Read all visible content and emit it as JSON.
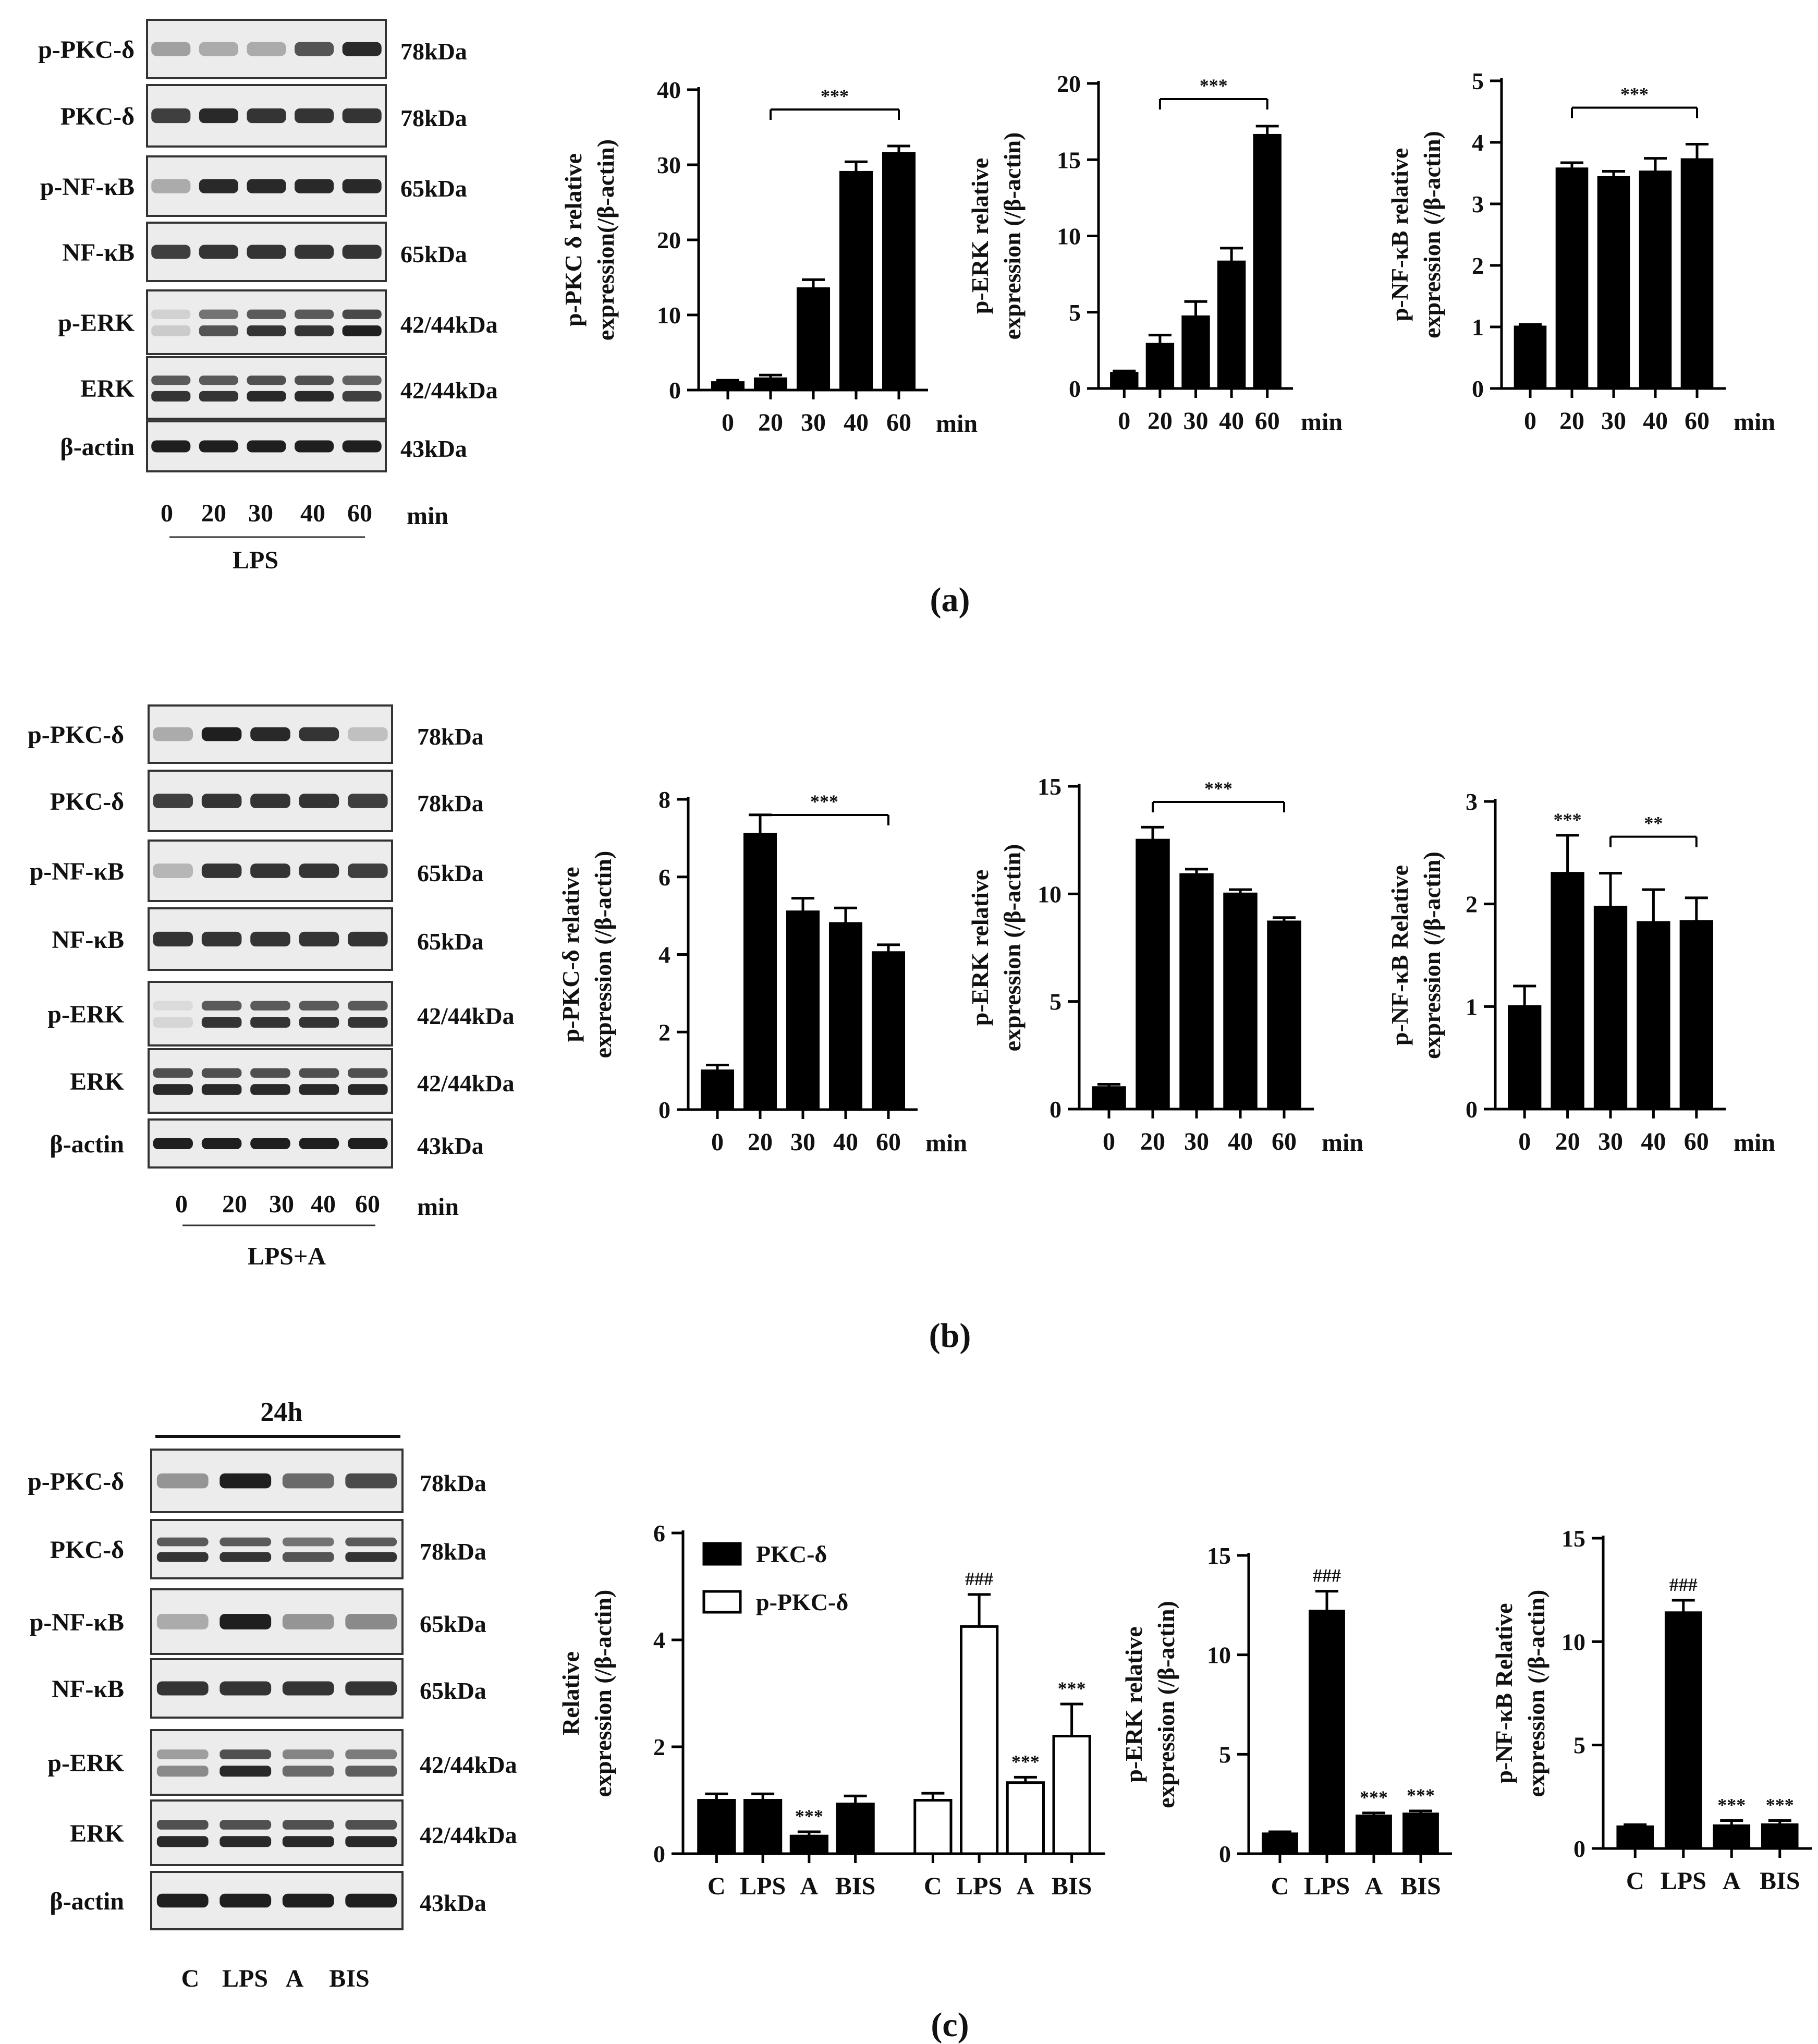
{
  "figure": {
    "panels": [
      {
        "label": "(a)",
        "blot": {
          "rows": [
            {
              "label": "p-PKC-δ",
              "kda": "78kDa",
              "bands": [
                0.35,
                0.3,
                0.3,
                0.7,
                0.9
              ]
            },
            {
              "label": "PKC-δ",
              "kda": "78kDa",
              "bands": [
                0.8,
                0.9,
                0.85,
                0.85,
                0.85
              ]
            },
            {
              "label": "p-NF-κB",
              "kda": "65kDa",
              "bands": [
                0.3,
                0.9,
                0.9,
                0.9,
                0.9
              ]
            },
            {
              "label": "NF-κB",
              "kda": "65kDa",
              "bands": [
                0.8,
                0.85,
                0.85,
                0.85,
                0.85
              ]
            },
            {
              "label": "p-ERK",
              "kda": "42/44kDa",
              "bands": [
                0.15,
                0.7,
                0.85,
                0.85,
                0.95
              ],
              "double": true
            },
            {
              "label": "ERK",
              "kda": "42/44kDa",
              "bands": [
                0.85,
                0.85,
                0.9,
                0.9,
                0.8
              ],
              "double": true
            },
            {
              "label": "β-actin",
              "kda": "43kDa",
              "bands": [
                0.95,
                0.95,
                0.95,
                0.95,
                0.95
              ]
            }
          ],
          "lanes": [
            "0",
            "20",
            "30",
            "40",
            "60"
          ],
          "unit": "min",
          "treatment": "LPS"
        }
      },
      {
        "label": "(b)",
        "blot": {
          "rows": [
            {
              "label": "p-PKC-δ",
              "kda": "78kDa",
              "bands": [
                0.3,
                0.95,
                0.9,
                0.85,
                0.2
              ]
            },
            {
              "label": "PKC-δ",
              "kda": "78kDa",
              "bands": [
                0.8,
                0.85,
                0.85,
                0.85,
                0.8
              ]
            },
            {
              "label": "p-NF-κB",
              "kda": "65kDa",
              "bands": [
                0.25,
                0.85,
                0.85,
                0.85,
                0.8
              ]
            },
            {
              "label": "NF-κB",
              "kda": "65kDa",
              "bands": [
                0.85,
                0.85,
                0.85,
                0.85,
                0.85
              ]
            },
            {
              "label": "p-ERK",
              "kda": "42/44kDa",
              "bands": [
                0.1,
                0.85,
                0.85,
                0.85,
                0.85
              ],
              "double": true
            },
            {
              "label": "ERK",
              "kda": "42/44kDa",
              "bands": [
                0.9,
                0.9,
                0.9,
                0.9,
                0.9
              ],
              "double": true
            },
            {
              "label": "β-actin",
              "kda": "43kDa",
              "bands": [
                0.95,
                0.95,
                0.95,
                0.95,
                0.95
              ]
            }
          ],
          "lanes": [
            "0",
            "20",
            "30",
            "40",
            "60"
          ],
          "unit": "min",
          "treatment": "LPS+A"
        }
      },
      {
        "label": "(c)",
        "blot": {
          "header": "24h",
          "rows": [
            {
              "label": "p-PKC-δ",
              "kda": "78kDa",
              "bands": [
                0.4,
                0.95,
                0.6,
                0.75
              ]
            },
            {
              "label": "PKC-δ",
              "kda": "78kDa",
              "bands": [
                0.85,
                0.85,
                0.7,
                0.85
              ],
              "double": true
            },
            {
              "label": "p-NF-κB",
              "kda": "65kDa",
              "bands": [
                0.3,
                0.95,
                0.4,
                0.45
              ]
            },
            {
              "label": "NF-κB",
              "kda": "65kDa",
              "bands": [
                0.85,
                0.85,
                0.85,
                0.85
              ]
            },
            {
              "label": "p-ERK",
              "kda": "42/44kDa",
              "bands": [
                0.45,
                0.9,
                0.6,
                0.65
              ],
              "double": true
            },
            {
              "label": "ERK",
              "kda": "42/44kDa",
              "bands": [
                0.9,
                0.9,
                0.9,
                0.9
              ],
              "double": true
            },
            {
              "label": "β-actin",
              "kda": "43kDa",
              "bands": [
                0.95,
                0.95,
                0.95,
                0.95
              ]
            }
          ],
          "lanes": [
            "C",
            "LPS",
            "A",
            "BIS"
          ]
        }
      }
    ]
  },
  "chart_data": [
    {
      "id": "a1",
      "type": "bar",
      "categories": [
        "0",
        "20",
        "30",
        "40",
        "60"
      ],
      "values": [
        1,
        1.5,
        13.5,
        29,
        31.5
      ],
      "errors": [
        0.3,
        0.5,
        1.2,
        1.4,
        1.0
      ],
      "ylabel_lines": [
        "p-PKC δ relative",
        "expression(/β-actin)"
      ],
      "xunit": "min",
      "ylim": [
        0,
        40
      ],
      "yticks": [
        0,
        10,
        20,
        30,
        40
      ],
      "sig": [
        {
          "text": "***",
          "from": 1,
          "to": 4
        }
      ]
    },
    {
      "id": "a2",
      "type": "bar",
      "categories": [
        "0",
        "20",
        "30",
        "40",
        "60"
      ],
      "values": [
        1,
        2.9,
        4.7,
        8.3,
        16.6
      ],
      "errors": [
        0.15,
        0.6,
        1.0,
        0.9,
        0.6
      ],
      "ylabel_lines": [
        "p-ERK relative",
        "expression (/β-actin)"
      ],
      "xunit": "min",
      "ylim": [
        0,
        20
      ],
      "yticks": [
        0,
        5,
        10,
        15,
        20
      ],
      "sig": [
        {
          "text": "***",
          "from": 1,
          "to": 4
        }
      ]
    },
    {
      "id": "a3",
      "type": "bar",
      "categories": [
        "0",
        "20",
        "30",
        "40",
        "60"
      ],
      "values": [
        1,
        3.57,
        3.43,
        3.52,
        3.72
      ],
      "errors": [
        0.04,
        0.1,
        0.1,
        0.22,
        0.25
      ],
      "ylabel_lines": [
        "p-NF-κB relative",
        "expression (/β-actin)"
      ],
      "xunit": "min",
      "ylim": [
        0,
        5
      ],
      "yticks": [
        0,
        1,
        2,
        3,
        4,
        5
      ],
      "sig": [
        {
          "text": "***",
          "from": 1,
          "to": 4
        }
      ]
    },
    {
      "id": "b1",
      "type": "bar",
      "categories": [
        "0",
        "20",
        "30",
        "40",
        "60"
      ],
      "values": [
        1,
        7.1,
        5.1,
        4.8,
        4.05
      ],
      "errors": [
        0.15,
        0.5,
        0.35,
        0.4,
        0.2
      ],
      "ylabel_lines": [
        "p-PKC-δ relative",
        "expression (/β-actin)"
      ],
      "xunit": "min",
      "ylim": [
        0,
        8
      ],
      "yticks": [
        0,
        2,
        4,
        6,
        8
      ],
      "sig": [
        {
          "text": "***",
          "from": 1,
          "to": 4
        }
      ]
    },
    {
      "id": "b2",
      "type": "bar",
      "categories": [
        "0",
        "20",
        "30",
        "40",
        "60"
      ],
      "values": [
        1,
        12.5,
        10.9,
        10,
        8.7
      ],
      "errors": [
        0.15,
        0.6,
        0.25,
        0.2,
        0.2
      ],
      "ylabel_lines": [
        "p-ERK relative",
        "expression (/β-actin)"
      ],
      "xunit": "min",
      "ylim": [
        0,
        15
      ],
      "yticks": [
        0,
        5,
        10,
        15
      ],
      "sig": [
        {
          "text": "***",
          "from": 1,
          "to": 4
        }
      ]
    },
    {
      "id": "b3",
      "type": "bar",
      "categories": [
        "0",
        "20",
        "30",
        "40",
        "60"
      ],
      "values": [
        1,
        2.3,
        1.97,
        1.82,
        1.83
      ],
      "errors": [
        0.2,
        0.37,
        0.33,
        0.32,
        0.23
      ],
      "ylabel_lines": [
        "p-NF-κB Relative",
        "expression (/β-actin)"
      ],
      "xunit": "min",
      "ylim": [
        0,
        3
      ],
      "yticks": [
        0,
        1,
        2,
        3
      ],
      "sig": [
        {
          "text": "**",
          "from": 2,
          "to": 4
        }
      ],
      "bar_labels": [
        "",
        "***",
        "",
        "",
        ""
      ]
    },
    {
      "id": "c1",
      "type": "bar",
      "categories": [
        "C",
        "LPS",
        "A",
        "BIS"
      ],
      "series": [
        {
          "name": "PKC-δ",
          "fill": "#000000",
          "values": [
            1,
            1,
            0.33,
            0.93
          ],
          "errors": [
            0.12,
            0.12,
            0.08,
            0.15
          ],
          "bar_labels": [
            "",
            "",
            "***",
            ""
          ]
        },
        {
          "name": "p-PKC-δ",
          "fill": "#ffffff",
          "values": [
            1,
            4.25,
            1.33,
            2.2
          ],
          "errors": [
            0.13,
            0.6,
            0.1,
            0.6
          ],
          "bar_labels": [
            "",
            "###",
            "***",
            "***"
          ]
        }
      ],
      "ylabel_lines": [
        "Relative",
        "expression (/β-actin)"
      ],
      "ylim": [
        0,
        6
      ],
      "yticks": [
        0,
        2,
        4,
        6
      ],
      "legend": "top-left"
    },
    {
      "id": "c2",
      "type": "bar",
      "categories": [
        "C",
        "LPS",
        "A",
        "BIS"
      ],
      "values": [
        1,
        12.2,
        1.9,
        2.0
      ],
      "errors": [
        0.1,
        1.0,
        0.15,
        0.15
      ],
      "bar_labels": [
        "",
        "###",
        "***",
        "***"
      ],
      "ylabel_lines": [
        "p-ERK relative",
        "expression (/β-actin)"
      ],
      "ylim": [
        0,
        15
      ],
      "yticks": [
        0,
        5,
        10,
        15
      ]
    },
    {
      "id": "c3",
      "type": "bar",
      "categories": [
        "C",
        "LPS",
        "A",
        "BIS"
      ],
      "values": [
        1.05,
        11.4,
        1.1,
        1.15
      ],
      "errors": [
        0.1,
        0.6,
        0.25,
        0.2
      ],
      "bar_labels": [
        "",
        "###",
        "***",
        "***"
      ],
      "ylabel_lines": [
        "p-NF-κB Relative",
        "expression (/β-actin)"
      ],
      "ylim": [
        0,
        15
      ],
      "yticks": [
        0,
        5,
        10,
        15
      ]
    }
  ]
}
